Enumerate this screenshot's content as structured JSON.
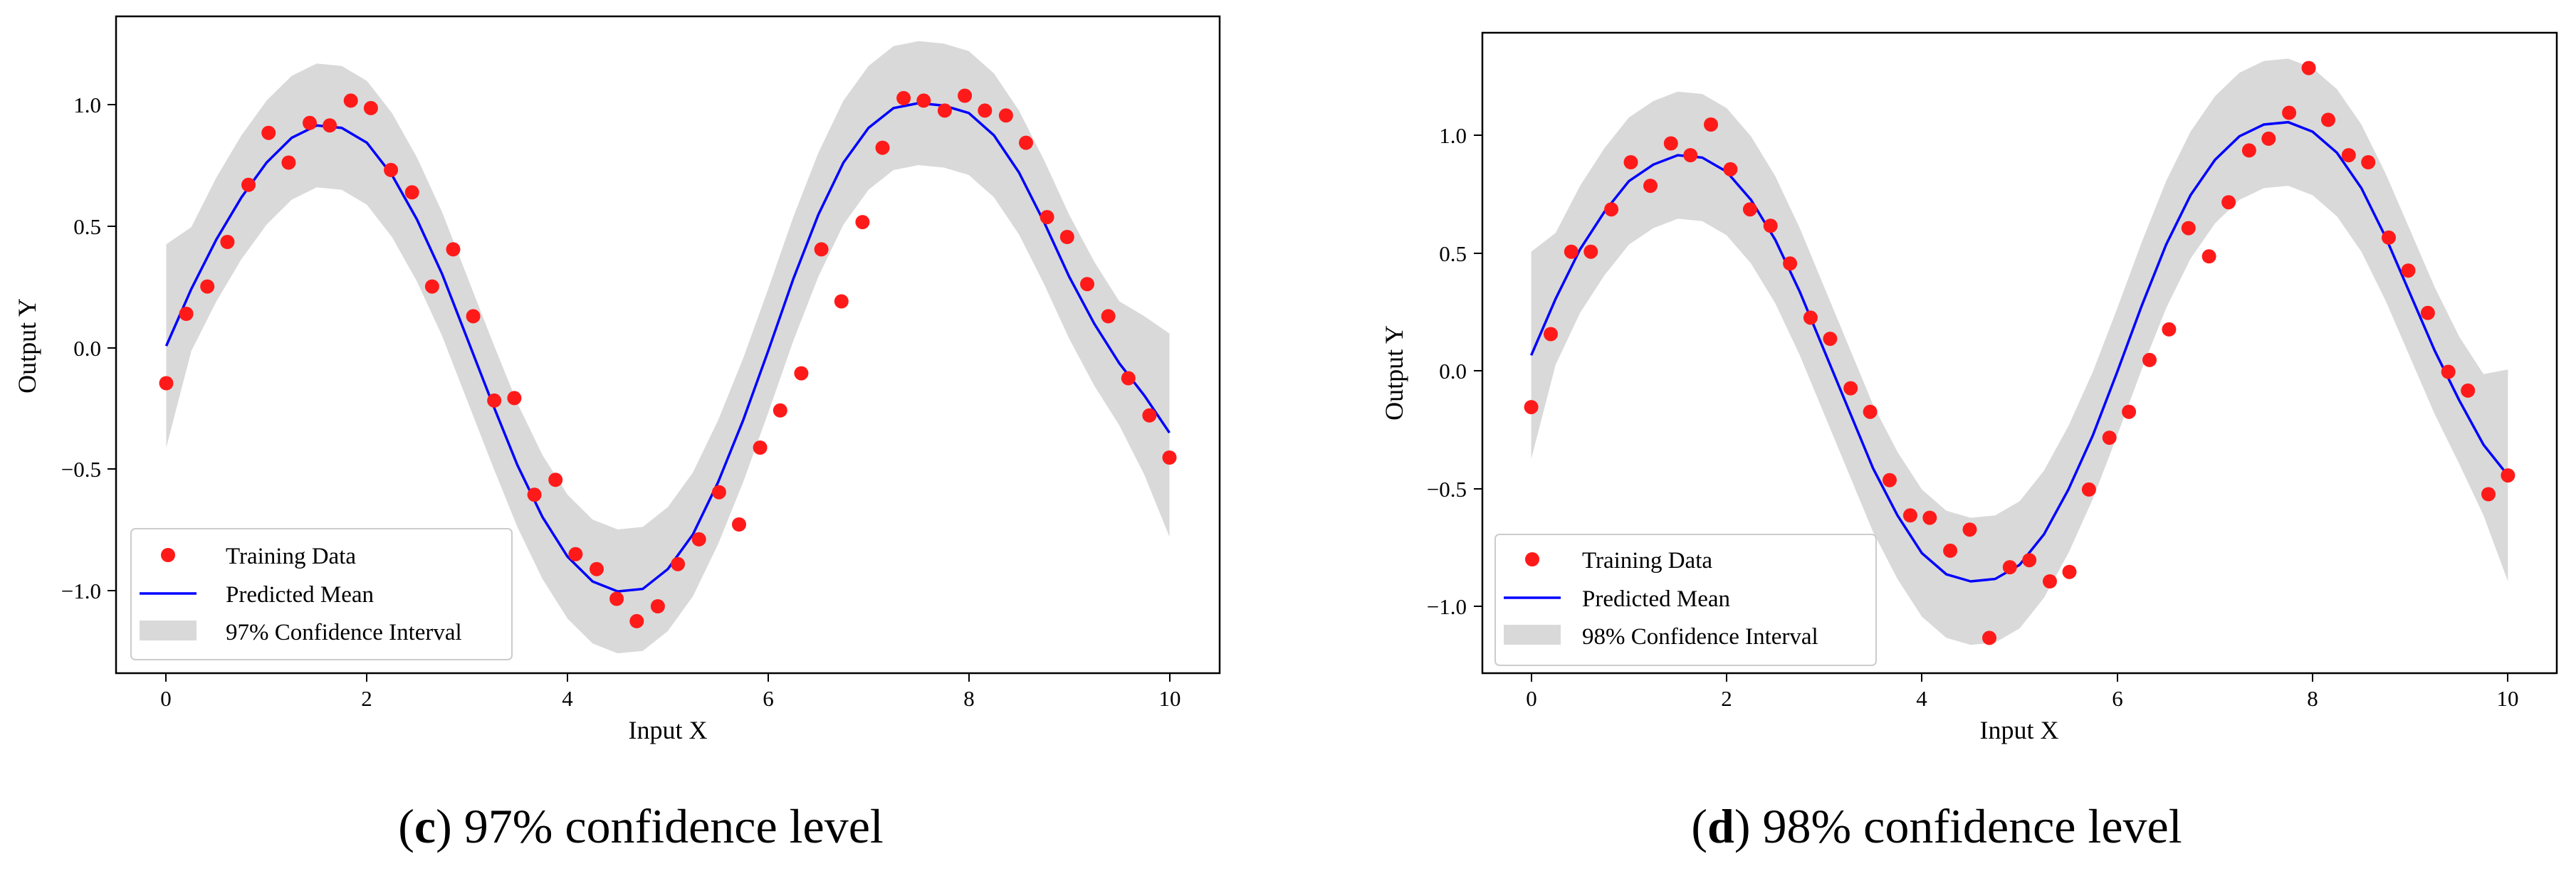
{
  "chart_data": [
    {
      "type": "line",
      "panel_letter": "c",
      "caption": "97% confidence level",
      "xlabel": "Input X",
      "ylabel": "Output Y",
      "xlim": [
        -0.5,
        10.5
      ],
      "ylim": [
        -1.3,
        1.35
      ],
      "x_ticks": [
        0,
        2,
        4,
        6,
        8,
        10
      ],
      "y_ticks": [
        -1.0,
        -0.5,
        0.0,
        0.5,
        1.0
      ],
      "x_tick_labels": [
        "0",
        "2",
        "4",
        "6",
        "8",
        "10"
      ],
      "y_tick_labels": [
        "−1.0",
        "−0.5",
        "0.0",
        "0.5",
        "1.0"
      ],
      "legend": {
        "position": "lower-left",
        "training_label": "Training Data",
        "mean_label": "Predicted Mean",
        "ci_label": "97% Confidence Interval"
      },
      "colors": {
        "points": "#ff1a1a",
        "mean": "#0000ff",
        "band": "#d9d9d9"
      },
      "series": [
        {
          "name": "Training Data",
          "kind": "scatter",
          "x": [
            0.0,
            0.2,
            0.41,
            0.61,
            0.82,
            1.02,
            1.22,
            1.43,
            1.63,
            1.84,
            2.04,
            2.24,
            2.45,
            2.65,
            2.86,
            3.06,
            3.27,
            3.47,
            3.67,
            3.88,
            4.08,
            4.29,
            4.49,
            4.69,
            4.9,
            5.1,
            5.31,
            5.51,
            5.71,
            5.92,
            6.12,
            6.33,
            6.53,
            6.73,
            6.94,
            7.14,
            7.35,
            7.55,
            7.76,
            7.96,
            8.16,
            8.37,
            8.57,
            8.78,
            8.98,
            9.18,
            9.39,
            9.59,
            9.8,
            10.0
          ],
          "y": [
            -0.13,
            0.15,
            0.26,
            0.44,
            0.67,
            0.88,
            0.76,
            0.92,
            0.91,
            1.01,
            0.98,
            0.73,
            0.64,
            0.26,
            0.41,
            0.14,
            -0.2,
            -0.19,
            -0.58,
            -0.52,
            -0.82,
            -0.88,
            -1.0,
            -1.09,
            -1.03,
            -0.86,
            -0.76,
            -0.57,
            -0.7,
            -0.39,
            -0.24,
            -0.09,
            0.41,
            0.2,
            0.52,
            0.82,
            1.02,
            1.01,
            0.97,
            1.03,
            0.97,
            0.95,
            0.84,
            0.54,
            0.46,
            0.27,
            0.14,
            -0.11,
            -0.26,
            -0.43
          ]
        },
        {
          "name": "Predicted Mean",
          "kind": "line",
          "x": [
            0.0,
            0.25,
            0.5,
            0.75,
            1.0,
            1.25,
            1.5,
            1.75,
            2.0,
            2.25,
            2.5,
            2.75,
            3.0,
            3.25,
            3.5,
            3.75,
            4.0,
            4.25,
            4.5,
            4.75,
            5.0,
            5.25,
            5.5,
            5.75,
            6.0,
            6.25,
            6.5,
            6.75,
            7.0,
            7.25,
            7.5,
            7.75,
            8.0,
            8.25,
            8.5,
            8.75,
            9.0,
            9.25,
            9.5,
            9.75,
            10.0
          ],
          "y": [
            0.02,
            0.25,
            0.45,
            0.62,
            0.76,
            0.86,
            0.91,
            0.9,
            0.84,
            0.71,
            0.53,
            0.31,
            0.05,
            -0.21,
            -0.46,
            -0.67,
            -0.83,
            -0.93,
            -0.97,
            -0.96,
            -0.88,
            -0.74,
            -0.53,
            -0.28,
            0.0,
            0.29,
            0.55,
            0.76,
            0.9,
            0.98,
            1.0,
            0.99,
            0.96,
            0.87,
            0.72,
            0.52,
            0.3,
            0.11,
            -0.05,
            -0.18,
            -0.33
          ]
        },
        {
          "name": "97% Confidence Interval",
          "kind": "band",
          "x": [
            0.0,
            0.25,
            0.5,
            0.75,
            1.0,
            1.25,
            1.5,
            1.75,
            2.0,
            2.25,
            2.5,
            2.75,
            3.0,
            3.25,
            3.5,
            3.75,
            4.0,
            4.25,
            4.5,
            4.75,
            5.0,
            5.25,
            5.5,
            5.75,
            6.0,
            6.25,
            6.5,
            6.75,
            7.0,
            7.25,
            7.5,
            7.75,
            8.0,
            8.25,
            8.5,
            8.75,
            9.0,
            9.25,
            9.5,
            9.75,
            10.0
          ],
          "lower": [
            -0.39,
            0.0,
            0.2,
            0.37,
            0.51,
            0.61,
            0.66,
            0.65,
            0.59,
            0.46,
            0.28,
            0.06,
            -0.2,
            -0.46,
            -0.71,
            -0.92,
            -1.08,
            -1.18,
            -1.22,
            -1.21,
            -1.13,
            -0.99,
            -0.78,
            -0.53,
            -0.25,
            0.04,
            0.3,
            0.51,
            0.65,
            0.73,
            0.75,
            0.74,
            0.71,
            0.62,
            0.47,
            0.27,
            0.05,
            -0.14,
            -0.3,
            -0.5,
            -0.75
          ],
          "upper": [
            0.43,
            0.5,
            0.7,
            0.87,
            1.01,
            1.11,
            1.16,
            1.15,
            1.09,
            0.96,
            0.78,
            0.56,
            0.3,
            0.04,
            -0.21,
            -0.42,
            -0.58,
            -0.68,
            -0.72,
            -0.71,
            -0.63,
            -0.49,
            -0.28,
            -0.03,
            0.25,
            0.54,
            0.8,
            1.01,
            1.15,
            1.23,
            1.25,
            1.24,
            1.21,
            1.12,
            0.97,
            0.77,
            0.55,
            0.36,
            0.2,
            0.14,
            0.07
          ]
        }
      ]
    },
    {
      "type": "line",
      "panel_letter": "d",
      "caption": "98% confidence level",
      "xlabel": "Input X",
      "ylabel": "Output Y",
      "xlim": [
        -0.5,
        10.5
      ],
      "ylim": [
        -1.29,
        1.43
      ],
      "x_ticks": [
        0,
        2,
        4,
        6,
        8,
        10
      ],
      "y_ticks": [
        -1.0,
        -0.5,
        0.0,
        0.5,
        1.0
      ],
      "x_tick_labels": [
        "0",
        "2",
        "4",
        "6",
        "8",
        "10"
      ],
      "y_tick_labels": [
        "−1.0",
        "−0.5",
        "0.0",
        "0.5",
        "1.0"
      ],
      "legend": {
        "position": "lower-left",
        "training_label": "Training Data",
        "mean_label": "Predicted Mean",
        "ci_label": "98% Confidence Interval"
      },
      "colors": {
        "points": "#ff1a1a",
        "mean": "#0000ff",
        "band": "#d9d9d9"
      },
      "series": [
        {
          "name": "Training Data",
          "kind": "scatter",
          "x": [
            0.0,
            0.2,
            0.41,
            0.61,
            0.82,
            1.02,
            1.22,
            1.43,
            1.63,
            1.84,
            2.04,
            2.24,
            2.45,
            2.65,
            2.86,
            3.06,
            3.27,
            3.47,
            3.67,
            3.88,
            4.08,
            4.29,
            4.49,
            4.69,
            4.9,
            5.1,
            5.31,
            5.51,
            5.71,
            5.92,
            6.12,
            6.33,
            6.53,
            6.73,
            6.94,
            7.14,
            7.35,
            7.55,
            7.76,
            7.96,
            8.16,
            8.37,
            8.57,
            8.78,
            8.98,
            9.18,
            9.39,
            9.59,
            9.8,
            10.0
          ],
          "y": [
            -0.16,
            0.15,
            0.5,
            0.5,
            0.68,
            0.88,
            0.78,
            0.96,
            0.91,
            1.04,
            0.85,
            0.68,
            0.61,
            0.45,
            0.22,
            0.13,
            -0.08,
            -0.18,
            -0.47,
            -0.62,
            -0.63,
            -0.77,
            -0.68,
            -1.14,
            -0.84,
            -0.81,
            -0.9,
            -0.86,
            -0.51,
            -0.29,
            -0.18,
            0.04,
            0.17,
            0.6,
            0.48,
            0.71,
            0.93,
            0.98,
            1.09,
            1.28,
            1.06,
            0.91,
            0.88,
            0.56,
            0.42,
            0.24,
            -0.01,
            -0.09,
            -0.53,
            -0.45
          ]
        },
        {
          "name": "Predicted Mean",
          "kind": "line",
          "x": [
            0.0,
            0.25,
            0.5,
            0.75,
            1.0,
            1.25,
            1.5,
            1.75,
            2.0,
            2.25,
            2.5,
            2.75,
            3.0,
            3.25,
            3.5,
            3.75,
            4.0,
            4.25,
            4.5,
            4.75,
            5.0,
            5.25,
            5.5,
            5.75,
            6.0,
            6.25,
            6.5,
            6.75,
            7.0,
            7.25,
            7.5,
            7.75,
            8.0,
            8.25,
            8.5,
            8.75,
            9.0,
            9.25,
            9.5,
            9.75,
            10.0
          ],
          "y": [
            0.06,
            0.3,
            0.51,
            0.67,
            0.8,
            0.87,
            0.91,
            0.9,
            0.84,
            0.72,
            0.55,
            0.33,
            0.08,
            -0.17,
            -0.42,
            -0.62,
            -0.78,
            -0.87,
            -0.9,
            -0.89,
            -0.83,
            -0.7,
            -0.51,
            -0.28,
            -0.01,
            0.27,
            0.53,
            0.74,
            0.89,
            0.99,
            1.04,
            1.05,
            1.01,
            0.92,
            0.77,
            0.56,
            0.32,
            0.08,
            -0.13,
            -0.32,
            -0.45
          ]
        },
        {
          "name": "98% Confidence Interval",
          "kind": "band",
          "x": [
            0.0,
            0.25,
            0.5,
            0.75,
            1.0,
            1.25,
            1.5,
            1.75,
            2.0,
            2.25,
            2.5,
            2.75,
            3.0,
            3.25,
            3.5,
            3.75,
            4.0,
            4.25,
            4.5,
            4.75,
            5.0,
            5.25,
            5.5,
            5.75,
            6.0,
            6.25,
            6.5,
            6.75,
            7.0,
            7.25,
            7.5,
            7.75,
            8.0,
            8.25,
            8.5,
            8.75,
            9.0,
            9.25,
            9.5,
            9.75,
            10.0
          ],
          "lower": [
            -0.38,
            0.02,
            0.24,
            0.4,
            0.53,
            0.6,
            0.64,
            0.63,
            0.57,
            0.45,
            0.28,
            0.06,
            -0.19,
            -0.44,
            -0.69,
            -0.89,
            -1.05,
            -1.14,
            -1.17,
            -1.16,
            -1.1,
            -0.97,
            -0.78,
            -0.55,
            -0.28,
            0.0,
            0.26,
            0.47,
            0.62,
            0.72,
            0.77,
            0.78,
            0.74,
            0.65,
            0.5,
            0.29,
            0.05,
            -0.19,
            -0.4,
            -0.62,
            -0.9
          ],
          "upper": [
            0.5,
            0.58,
            0.78,
            0.94,
            1.07,
            1.14,
            1.18,
            1.17,
            1.11,
            0.99,
            0.82,
            0.6,
            0.35,
            0.1,
            -0.15,
            -0.35,
            -0.51,
            -0.6,
            -0.63,
            -0.62,
            -0.56,
            -0.43,
            -0.24,
            -0.01,
            0.26,
            0.54,
            0.8,
            1.01,
            1.16,
            1.26,
            1.31,
            1.32,
            1.28,
            1.19,
            1.04,
            0.83,
            0.59,
            0.35,
            0.14,
            -0.02,
            0.0
          ]
        }
      ]
    }
  ]
}
